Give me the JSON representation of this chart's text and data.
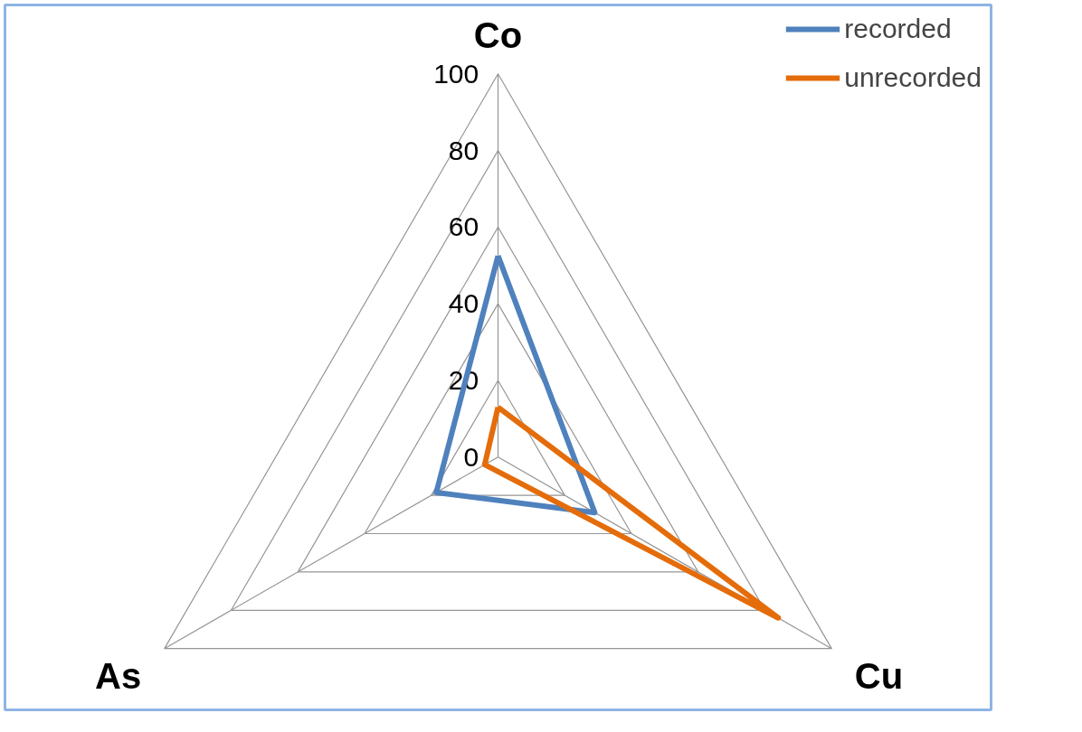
{
  "chart_data": {
    "type": "radar",
    "categories": [
      "Co",
      "Cu",
      "As"
    ],
    "series": [
      {
        "name": "recorded",
        "color": "#4f81bd",
        "values": [
          52.5,
          29,
          18.5
        ]
      },
      {
        "name": "unrecorded",
        "color": "#e46c0a",
        "values": [
          13,
          84,
          4
        ]
      }
    ],
    "ylim": [
      0,
      100
    ],
    "yticks": [
      0,
      20,
      40,
      60,
      80,
      100
    ],
    "grid": true,
    "legend": "top right"
  }
}
